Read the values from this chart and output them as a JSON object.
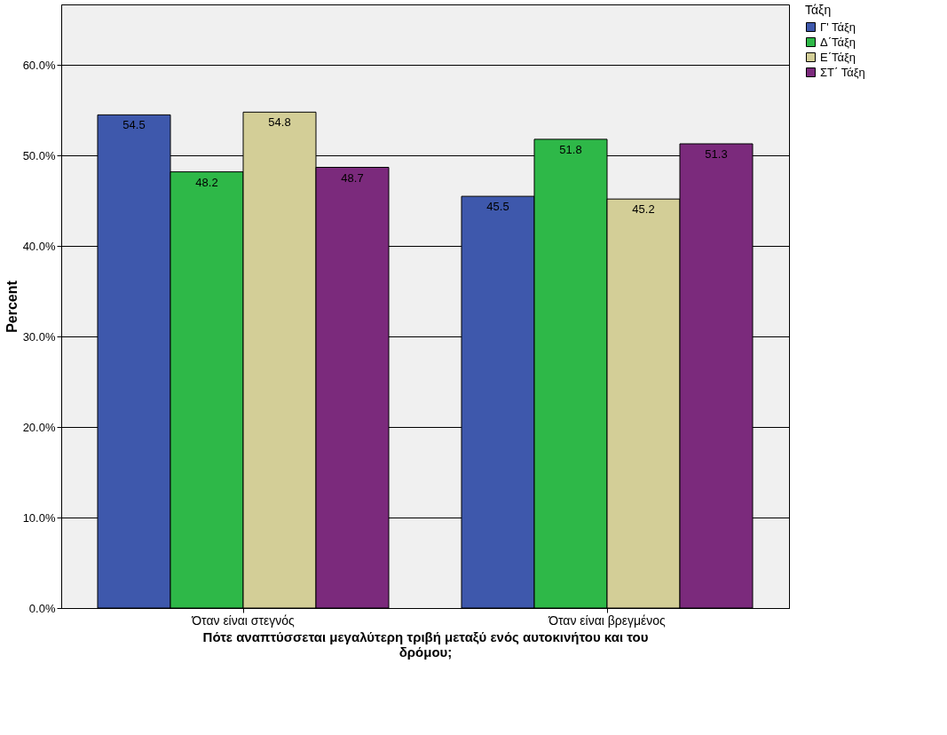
{
  "chart_data": {
    "type": "bar",
    "categories": [
      "Όταν είναι στεγνός",
      "Όταν είναι βρεγμένος"
    ],
    "series": [
      {
        "name": "Γ' Τάξη",
        "color": "#3e58ac",
        "values": [
          54.5,
          45.5
        ]
      },
      {
        "name": "Δ΄Τάξη",
        "color": "#2eb848",
        "values": [
          48.2,
          51.8
        ]
      },
      {
        "name": "Ε΄Τάξη",
        "color": "#d3ce97",
        "values": [
          54.8,
          45.2
        ]
      },
      {
        "name": "ΣΤ΄ Τάξη",
        "color": "#7b2a7c",
        "values": [
          48.7,
          51.3
        ]
      }
    ],
    "xlabel": "Πότε αναπτύσσεται μεγαλύτερη τριβή μεταξύ ενός αυτοκινήτου και του δρόμου;",
    "ylabel": "Percent",
    "legend_title": "Τάξη",
    "legend": "top right",
    "ylim": [
      0,
      66.7
    ],
    "yticks": [
      {
        "value": 0,
        "label": "0.0%"
      },
      {
        "value": 10,
        "label": "10.0%"
      },
      {
        "value": 20,
        "label": "20.0%"
      },
      {
        "value": 30,
        "label": "30.0%"
      },
      {
        "value": 40,
        "label": "40.0%"
      },
      {
        "value": 50,
        "label": "50.0%"
      },
      {
        "value": 60,
        "label": "60.0%"
      }
    ],
    "grid": "y",
    "data_labels": true
  }
}
